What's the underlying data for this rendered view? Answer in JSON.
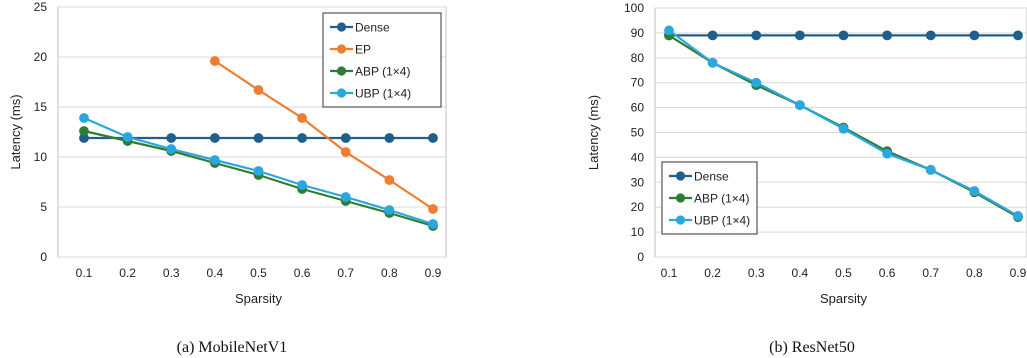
{
  "chart_data": [
    {
      "type": "line",
      "caption": "(a) MobileNetV1",
      "xlabel": "Sparsity",
      "ylabel": "Latency (ms)",
      "x": [
        0.1,
        0.2,
        0.3,
        0.4,
        0.5,
        0.6,
        0.7,
        0.8,
        0.9
      ],
      "xticks": [
        "0.1",
        "0.2",
        "0.3",
        "0.4",
        "0.5",
        "0.6",
        "0.7",
        "0.8",
        "0.9"
      ],
      "ylim": [
        0,
        25
      ],
      "yticks": [
        "0",
        "5",
        "10",
        "15",
        "20",
        "25"
      ],
      "grid": "horizontal",
      "legend_position": "top-right",
      "series": [
        {
          "name": "Dense",
          "color": "#1f5f8b",
          "values": [
            11.9,
            11.9,
            11.9,
            11.9,
            11.9,
            11.9,
            11.9,
            11.9,
            11.9
          ]
        },
        {
          "name": "EP",
          "color": "#ed7d31",
          "values": [
            null,
            null,
            null,
            19.6,
            16.7,
            13.9,
            10.5,
            7.7,
            4.8
          ]
        },
        {
          "name": "ABP (1×4)",
          "color": "#2e7d32",
          "values": [
            12.6,
            11.6,
            10.6,
            9.4,
            8.2,
            6.8,
            5.6,
            4.4,
            3.1
          ]
        },
        {
          "name": "UBP (1×4)",
          "color": "#2aa7df",
          "values": [
            13.9,
            12.0,
            10.8,
            9.7,
            8.6,
            7.2,
            6.0,
            4.7,
            3.3
          ]
        }
      ]
    },
    {
      "type": "line",
      "caption": "(b) ResNet50",
      "xlabel": "Sparsity",
      "ylabel": "Latency (ms)",
      "x": [
        0.1,
        0.2,
        0.3,
        0.4,
        0.5,
        0.6,
        0.7,
        0.8,
        0.9
      ],
      "xticks": [
        "0.1",
        "0.2",
        "0.3",
        "0.4",
        "0.5",
        "0.6",
        "0.7",
        "0.8",
        "0.9"
      ],
      "ylim": [
        0,
        100
      ],
      "yticks": [
        "0",
        "10",
        "20",
        "30",
        "40",
        "50",
        "60",
        "70",
        "80",
        "90",
        "100"
      ],
      "grid": "horizontal",
      "legend_position": "bottom-left",
      "series": [
        {
          "name": "Dense",
          "color": "#1f5f8b",
          "values": [
            89,
            89,
            89,
            89,
            89,
            89,
            89,
            89,
            89
          ]
        },
        {
          "name": "ABP (1×4)",
          "color": "#2e7d32",
          "values": [
            89,
            78,
            69,
            61,
            52,
            42.5,
            35,
            26,
            16
          ]
        },
        {
          "name": "UBP (1×4)",
          "color": "#2aa7df",
          "values": [
            91,
            78,
            70,
            61,
            51.5,
            41.5,
            35,
            26.5,
            16.5
          ]
        }
      ]
    }
  ]
}
